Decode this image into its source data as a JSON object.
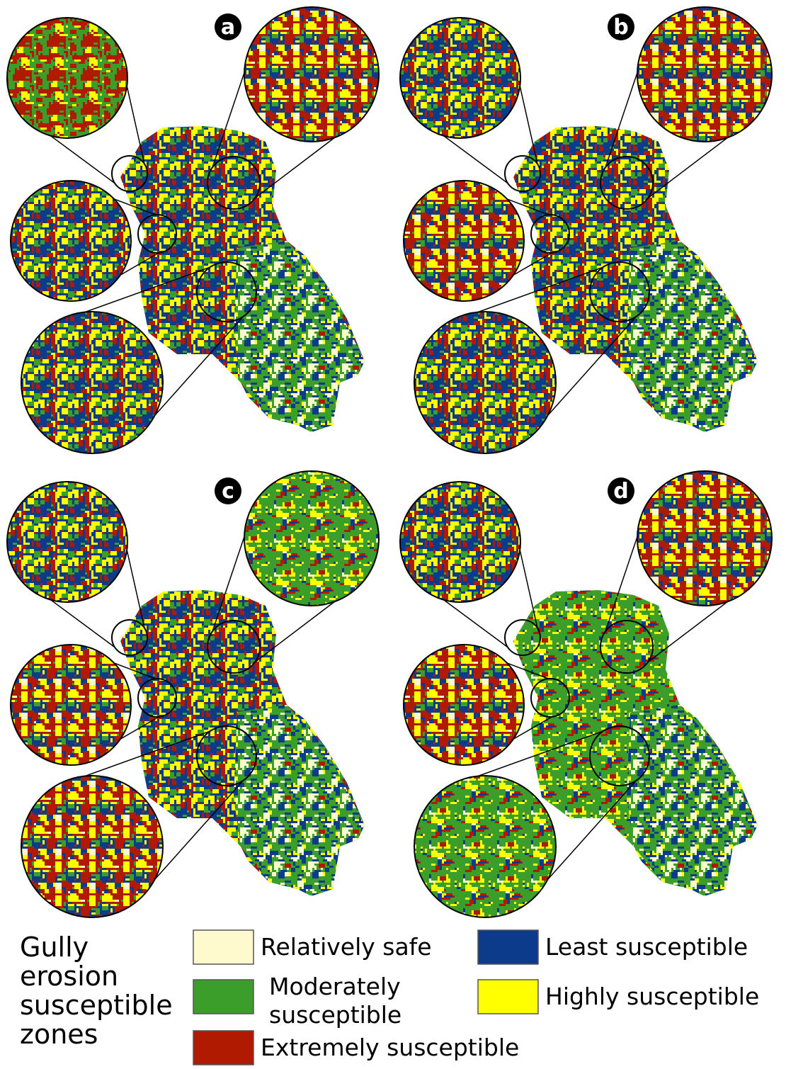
{
  "panels": [
    {
      "label": "a"
    },
    {
      "label": "b"
    },
    {
      "label": "c"
    },
    {
      "label": "d"
    }
  ],
  "legend": {
    "title": [
      "Gully",
      "erosion",
      "susceptible",
      "zones"
    ],
    "items": [
      {
        "label": [
          "Relatively safe"
        ],
        "color": "#fffacd"
      },
      {
        "label": [
          "Moderately",
          "susceptible"
        ],
        "color": "#3c9e2a"
      },
      {
        "label": [
          "Extremely susceptible"
        ],
        "color": "#b01a00"
      },
      {
        "label": [
          "Least susceptible"
        ],
        "color": "#0d3b8c"
      },
      {
        "label": [
          "Highly susceptible"
        ],
        "color": "#ffff00"
      }
    ]
  }
}
